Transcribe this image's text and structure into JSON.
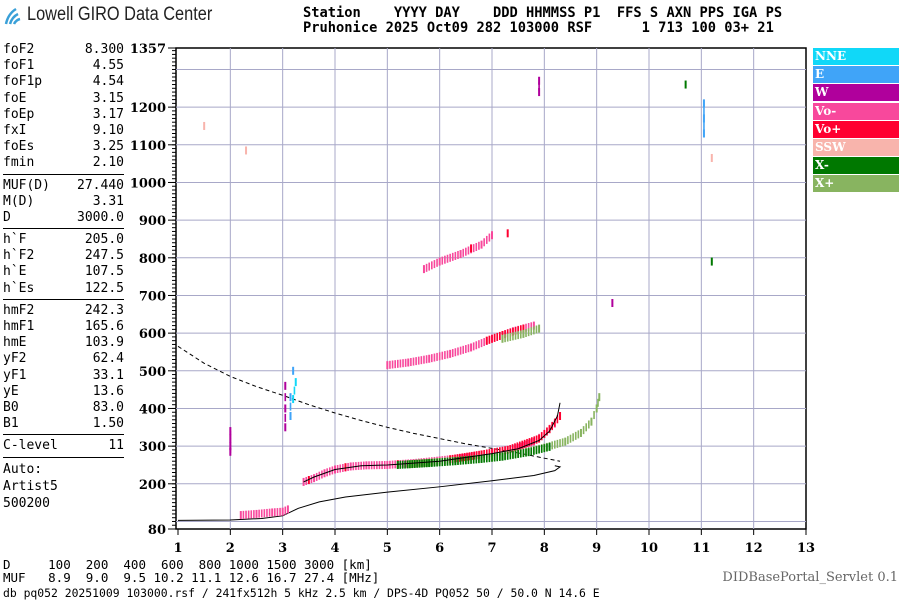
{
  "header": {
    "logo_text": "Lowell GIRO Data Center",
    "line1": "Station    YYYY DAY    DDD HHMMSS P1  FFS S AXN PPS IGA PS",
    "line2": "Pruhonice 2025 Oct09 282 103000 RSF      1 713 100 03+ 21"
  },
  "params": {
    "group1": [
      {
        "name": "foF2",
        "value": "8.300"
      },
      {
        "name": "foF1",
        "value": "4.55"
      },
      {
        "name": "foF1p",
        "value": "4.54"
      },
      {
        "name": "foE",
        "value": "3.15"
      },
      {
        "name": "foEp",
        "value": "3.17"
      },
      {
        "name": "fxI",
        "value": "9.10"
      },
      {
        "name": "foEs",
        "value": "3.25"
      },
      {
        "name": "fmin",
        "value": "2.10"
      }
    ],
    "group2": [
      {
        "name": "MUF(D)",
        "value": "27.440"
      },
      {
        "name": "M(D)",
        "value": "3.31"
      },
      {
        "name": "D",
        "value": "3000.0"
      }
    ],
    "group3": [
      {
        "name": "h`F",
        "value": "205.0"
      },
      {
        "name": "h`F2",
        "value": "247.5"
      },
      {
        "name": "h`E",
        "value": "107.5"
      },
      {
        "name": "h`Es",
        "value": "122.5"
      }
    ],
    "group4": [
      {
        "name": "hmF2",
        "value": "242.3"
      },
      {
        "name": "hmF1",
        "value": "165.6"
      },
      {
        "name": "hmE",
        "value": "103.9"
      },
      {
        "name": "yF2",
        "value": "62.4"
      },
      {
        "name": "yF1",
        "value": "33.1"
      },
      {
        "name": "yE",
        "value": "13.6"
      },
      {
        "name": "B0",
        "value": "83.0"
      },
      {
        "name": "B1",
        "value": "1.50"
      }
    ],
    "group5": [
      {
        "name": "C-level",
        "value": "11"
      }
    ],
    "auto": [
      "Auto:",
      "Artist5",
      "500200"
    ]
  },
  "legend": [
    {
      "label": "NNE",
      "color": "#10d8f8"
    },
    {
      "label": "E",
      "color": "#40a4f8"
    },
    {
      "label": "W",
      "color": "#b0009c"
    },
    {
      "label": "Vo-",
      "color": "#f8489c"
    },
    {
      "label": "Vo+",
      "color": "#ff0030"
    },
    {
      "label": "SSW",
      "color": "#f8b4ac"
    },
    {
      "label": "X-",
      "color": "#007800"
    },
    {
      "label": "X+",
      "color": "#88b460"
    }
  ],
  "bottom": {
    "d_row": "D     100  200  400  600  800 1000 1500 3000 [km]",
    "muf_row": "MUF   8.9  9.0  9.5 10.2 11.1 12.6 16.7 27.4 [MHz]",
    "footer": "db pq052 20251009 103000.rsf / 241fx512h 5 kHz 2.5 km / DPS-4D PQ052 50 / 50.0 N 14.6 E",
    "servlet": "DIDBasePortal_Servlet 0.1"
  },
  "chart_data": {
    "type": "scatter",
    "xlim": [
      1,
      13
    ],
    "ylim": [
      80,
      1357
    ],
    "x_ticks": [
      "1",
      "2",
      "3",
      "4",
      "5",
      "6",
      "7",
      "8",
      "9",
      "10",
      "11",
      "12",
      "13"
    ],
    "y_ticks": [
      "1357",
      "1200",
      "1100",
      "1000",
      "900",
      "800",
      "700",
      "600",
      "500",
      "400",
      "300",
      "200",
      "80"
    ],
    "grid": true,
    "legend_placement": "right",
    "series": [
      {
        "name": "Vo-",
        "color": "#f8489c",
        "points": [
          [
            2.2,
            117
          ],
          [
            2.5,
            120
          ],
          [
            2.8,
            124
          ],
          [
            3.0,
            126
          ],
          [
            3.1,
            132
          ],
          [
            3.4,
            205
          ],
          [
            3.6,
            215
          ],
          [
            3.8,
            228
          ],
          [
            4.0,
            238
          ],
          [
            4.3,
            246
          ],
          [
            4.6,
            249
          ],
          [
            5.0,
            250
          ],
          [
            5.5,
            255
          ],
          [
            6.0,
            262
          ],
          [
            6.5,
            270
          ],
          [
            7.0,
            282
          ],
          [
            7.5,
            296
          ],
          [
            7.8,
            312
          ],
          [
            8.0,
            332
          ],
          [
            8.2,
            360
          ],
          [
            5.0,
            515
          ],
          [
            5.4,
            522
          ],
          [
            5.8,
            532
          ],
          [
            6.2,
            545
          ],
          [
            6.6,
            562
          ],
          [
            7.0,
            585
          ],
          [
            7.4,
            605
          ],
          [
            7.8,
            620
          ],
          [
            5.7,
            770
          ],
          [
            6.0,
            790
          ],
          [
            6.4,
            810
          ],
          [
            6.8,
            835
          ],
          [
            7.0,
            860
          ]
        ]
      },
      {
        "name": "Vo+",
        "color": "#ff0030",
        "points": [
          [
            3.5,
            210
          ],
          [
            4.2,
            244
          ],
          [
            5.2,
            252
          ],
          [
            6.2,
            265
          ],
          [
            6.8,
            278
          ],
          [
            7.3,
            290
          ],
          [
            7.9,
            320
          ],
          [
            8.1,
            345
          ],
          [
            8.3,
            380
          ],
          [
            6.9,
            580
          ],
          [
            7.2,
            595
          ],
          [
            7.6,
            612
          ],
          [
            6.6,
            825
          ],
          [
            7.3,
            865
          ]
        ]
      },
      {
        "name": "X+",
        "color": "#88b460",
        "points": [
          [
            5.4,
            252
          ],
          [
            6.0,
            258
          ],
          [
            6.5,
            263
          ],
          [
            7.0,
            270
          ],
          [
            7.5,
            280
          ],
          [
            8.0,
            296
          ],
          [
            8.4,
            312
          ],
          [
            8.7,
            335
          ],
          [
            8.9,
            365
          ],
          [
            9.0,
            400
          ],
          [
            9.05,
            430
          ],
          [
            7.2,
            585
          ],
          [
            7.6,
            598
          ],
          [
            7.9,
            612
          ]
        ]
      },
      {
        "name": "X-",
        "color": "#007800",
        "points": [
          [
            5.2,
            250
          ],
          [
            5.8,
            255
          ],
          [
            6.3,
            260
          ],
          [
            6.8,
            266
          ],
          [
            7.2,
            272
          ],
          [
            7.7,
            284
          ],
          [
            8.1,
            298
          ],
          [
            10.7,
            1260
          ],
          [
            11.2,
            790
          ]
        ]
      },
      {
        "name": "W",
        "color": "#b0009c",
        "points": [
          [
            2.0,
            285
          ],
          [
            2.0,
            300
          ],
          [
            2.0,
            320
          ],
          [
            2.0,
            340
          ],
          [
            3.05,
            350
          ],
          [
            3.05,
            400
          ],
          [
            3.05,
            460
          ],
          [
            7.9,
            1240
          ],
          [
            7.9,
            1270
          ],
          [
            9.3,
            680
          ]
        ]
      },
      {
        "name": "E",
        "color": "#40a4f8",
        "points": [
          [
            3.15,
            380
          ],
          [
            3.15,
            430
          ],
          [
            3.2,
            500
          ],
          [
            11.05,
            1130
          ],
          [
            11.05,
            1170
          ],
          [
            11.05,
            1210
          ]
        ]
      },
      {
        "name": "NNE",
        "color": "#10d8f8",
        "points": [
          [
            3.2,
            425
          ],
          [
            3.25,
            470
          ]
        ]
      },
      {
        "name": "SSW",
        "color": "#f8b4ac",
        "points": [
          [
            2.3,
            1085
          ],
          [
            1.5,
            1150
          ],
          [
            11.2,
            1065
          ]
        ]
      }
    ],
    "profile_solid": [
      [
        1,
        103
      ],
      [
        2,
        104
      ],
      [
        2.6,
        108
      ],
      [
        3.0,
        115
      ],
      [
        3.3,
        135
      ],
      [
        3.7,
        152
      ],
      [
        4.2,
        165
      ],
      [
        5.0,
        178
      ],
      [
        6.0,
        192
      ],
      [
        7.0,
        208
      ],
      [
        7.8,
        222
      ],
      [
        8.2,
        235
      ],
      [
        8.3,
        245
      ],
      [
        8.2,
        248
      ]
    ],
    "profile_dashed": [
      [
        1,
        565
      ],
      [
        1.5,
        520
      ],
      [
        2,
        485
      ],
      [
        2.5,
        458
      ],
      [
        3,
        435
      ],
      [
        3.5,
        410
      ],
      [
        4,
        388
      ],
      [
        4.5,
        368
      ],
      [
        5,
        350
      ],
      [
        5.5,
        334
      ],
      [
        6,
        320
      ],
      [
        6.5,
        306
      ],
      [
        7,
        294
      ],
      [
        7.5,
        282
      ],
      [
        8,
        268
      ],
      [
        8.3,
        260
      ]
    ],
    "fitted_trace": [
      [
        3.4,
        205
      ],
      [
        3.6,
        218
      ],
      [
        4.0,
        238
      ],
      [
        4.5,
        248
      ],
      [
        5.0,
        250
      ],
      [
        6.0,
        260
      ],
      [
        7.0,
        280
      ],
      [
        7.5,
        293
      ],
      [
        7.9,
        315
      ],
      [
        8.1,
        340
      ],
      [
        8.25,
        380
      ],
      [
        8.3,
        415
      ]
    ]
  }
}
